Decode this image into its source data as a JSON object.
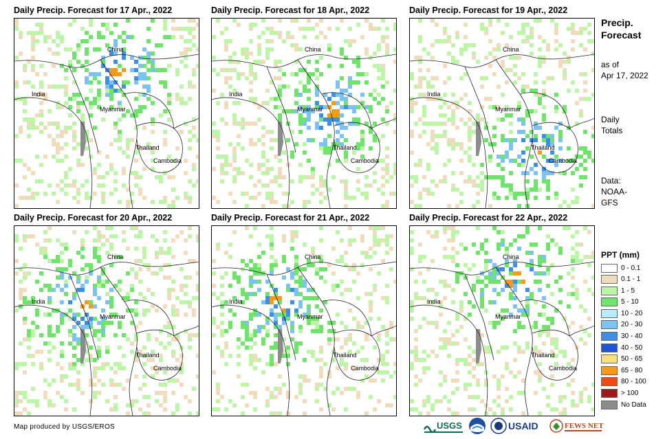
{
  "panels": [
    {
      "title": "Daily Precip. Forecast for 17 Apr., 2022",
      "seed": 3,
      "focus": "north"
    },
    {
      "title": "Daily Precip. Forecast for 18 Apr., 2022",
      "seed": 7,
      "focus": "center"
    },
    {
      "title": "Daily Precip. Forecast for 19 Apr., 2022",
      "seed": 11,
      "focus": "south"
    },
    {
      "title": "Daily Precip. Forecast for 20 Apr., 2022",
      "seed": 19,
      "focus": "west"
    },
    {
      "title": "Daily Precip. Forecast for 21 Apr., 2022",
      "seed": 23,
      "focus": "west"
    },
    {
      "title": "Daily Precip. Forecast for 22 Apr., 2022",
      "seed": 29,
      "focus": "north"
    }
  ],
  "map_labels": {
    "china": "China",
    "india": "India",
    "myanmar": "Myanmar",
    "thailand": "Thailand",
    "cambodia": "Cambodia"
  },
  "side": {
    "title_line1": "Precip.",
    "title_line2": "Forecast",
    "asof_line1": "as of",
    "asof_line2": "Apr 17, 2022",
    "totals_line1": "Daily",
    "totals_line2": "Totals",
    "data_line1": "Data:",
    "data_line2": "NOAA-",
    "data_line3": "GFS"
  },
  "legend": {
    "title": "PPT (mm)",
    "items": [
      {
        "label": "0 - 0.1",
        "color": "#ffffff"
      },
      {
        "label": "0.1 - 1",
        "color": "#efdcbc"
      },
      {
        "label": "1 - 5",
        "color": "#bdf5a8"
      },
      {
        "label": "5 - 10",
        "color": "#6ee46a"
      },
      {
        "label": "10 - 20",
        "color": "#b8ecf8"
      },
      {
        "label": "20 - 30",
        "color": "#7cc2f3"
      },
      {
        "label": "30 - 40",
        "color": "#3d8ee6"
      },
      {
        "label": "40 - 50",
        "color": "#1f56d8"
      },
      {
        "label": "50 - 65",
        "color": "#f9e07a"
      },
      {
        "label": "65 - 80",
        "color": "#f59a1a"
      },
      {
        "label": "80 - 100",
        "color": "#f04a14"
      },
      {
        "label": "> 100",
        "color": "#a01a1a"
      },
      {
        "label": "No Data",
        "color": "#8c8c8c"
      }
    ]
  },
  "credit": "Map produced by USGS/EROS",
  "logos": {
    "usgs": "USGS",
    "usaid": "USAID",
    "fewsnet": "FEWS NET"
  }
}
